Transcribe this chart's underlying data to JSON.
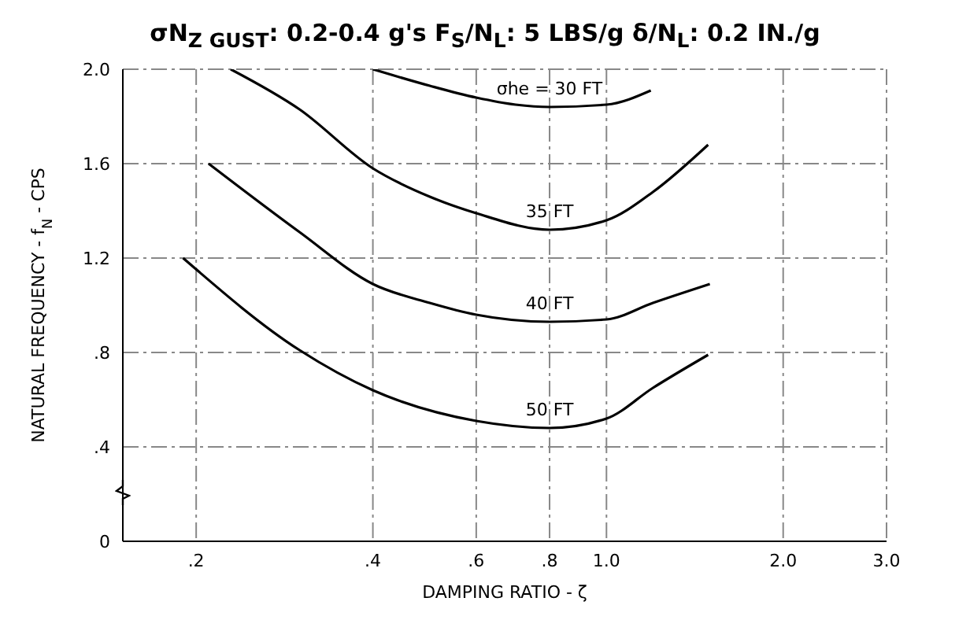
{
  "chart_data": {
    "type": "line",
    "title": "σN$_{Z GUST}$: 0.2-0.4 g's  F$_{S}$/N$_{L}$: 5 LBS/g  δ/N$_{L}$: 0.2 IN./g",
    "xlabel": "DAMPING RATIO - ζ",
    "ylabel": "NATURAL FREQUENCY - f$_{N}$ - CPS",
    "log": "x",
    "xlim": [
      0.15,
      3.0
    ],
    "xticks": [
      {
        "value": 0.2,
        "label": ".2"
      },
      {
        "value": 0.4,
        "label": ".4"
      },
      {
        "value": 0.6,
        "label": ".6"
      },
      {
        "value": 0.8,
        "label": ".8"
      },
      {
        "value": 1,
        "label": "1.0"
      },
      {
        "value": 2,
        "label": "2.0"
      },
      {
        "value": 3,
        "label": "3.0"
      }
    ],
    "ylim": [
      0,
      2.0
    ],
    "yticks": [
      0,
      {
        "value": 0.4,
        "label": ".4"
      },
      {
        "value": 0.8,
        "label": ".8"
      },
      1.2,
      1.6,
      {
        "value": 2,
        "label": "2.0"
      }
    ],
    "grid": true,
    "legend": false,
    "marker": "none",
    "line_style": "solid",
    "series": [
      {
        "name": "σhe = 30 FT",
        "color": "#000000",
        "x": [
          0.4,
          0.5,
          0.6,
          0.7,
          0.8,
          1.0,
          1.19
        ],
        "values": [
          2.0,
          1.93,
          1.88,
          1.85,
          1.84,
          1.85,
          1.91
        ]
      },
      {
        "name": "35 FT",
        "color": "#000000",
        "x": [
          0.229,
          0.3,
          0.4,
          0.5,
          0.6,
          0.8,
          1.0,
          1.2,
          1.49
        ],
        "values": [
          2.0,
          1.83,
          1.58,
          1.46,
          1.39,
          1.32,
          1.36,
          1.48,
          1.68
        ]
      },
      {
        "name": "40 FT",
        "color": "#000000",
        "x": [
          0.21,
          0.3,
          0.4,
          0.5,
          0.6,
          0.8,
          1.0,
          1.2,
          1.5
        ],
        "values": [
          1.6,
          1.31,
          1.09,
          1.01,
          0.96,
          0.93,
          0.94,
          1.01,
          1.09
        ]
      },
      {
        "name": "50 FT",
        "color": "#000000",
        "x": [
          0.19,
          0.3,
          0.4,
          0.6,
          0.8,
          1.0,
          1.2,
          1.49
        ],
        "values": [
          1.2,
          0.81,
          0.64,
          0.51,
          0.48,
          0.52,
          0.65,
          0.79
        ]
      }
    ]
  }
}
